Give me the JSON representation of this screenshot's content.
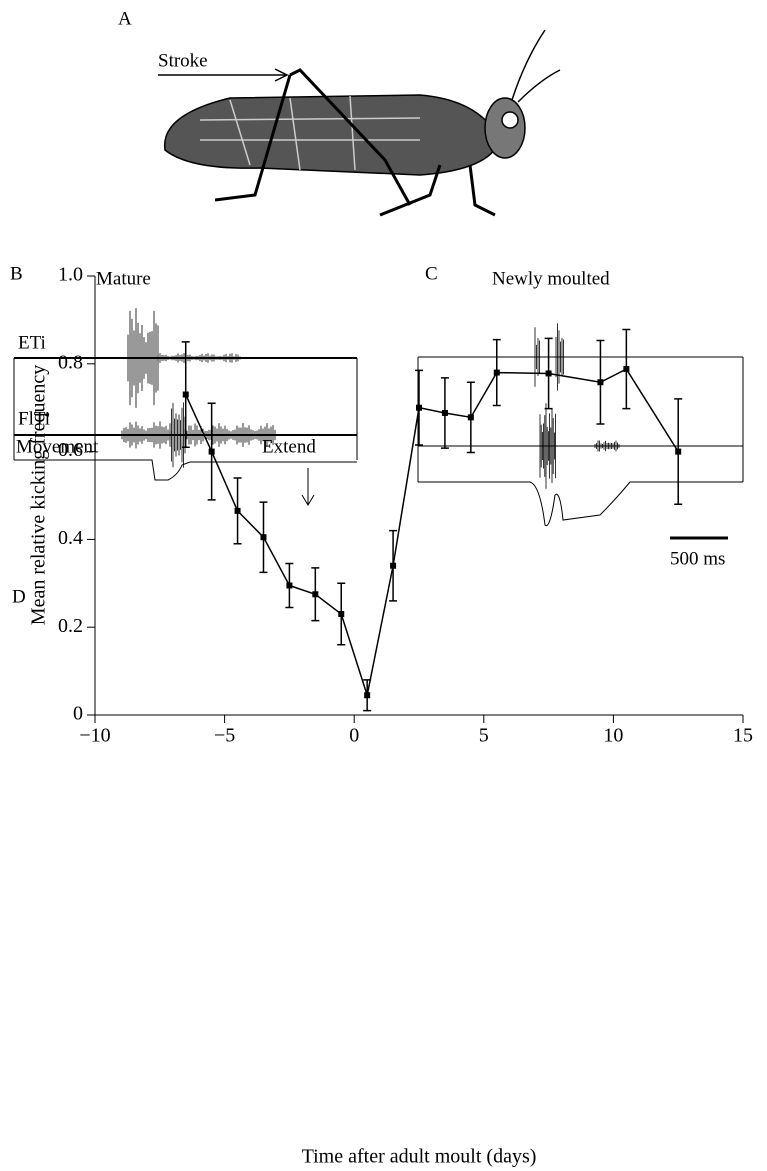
{
  "panel_a": {
    "label": "A",
    "stroke": "Stroke"
  },
  "panel_b": {
    "label": "B",
    "title": "Mature",
    "eti": "ETi",
    "flti": "FlTi",
    "movement": "Movement",
    "extend": "Extend"
  },
  "panel_c": {
    "label": "C",
    "title": "Newly moulted",
    "scale_bar": "500 ms"
  },
  "panel_d": {
    "label": "D"
  },
  "chart_data": {
    "type": "line",
    "x_label": "Time after adult moult (days)",
    "y_label": "Mean relative kicking frequency",
    "x": [
      -6.5,
      -5.5,
      -4.5,
      -3.5,
      -2.5,
      -1.5,
      -0.5,
      0.5,
      1.5,
      2.5,
      3.5,
      4.5,
      5.5,
      7.5,
      9.5,
      10.5,
      12.5
    ],
    "series": [
      {
        "color": "#000000",
        "values": [
          0.73,
          0.6,
          0.465,
          0.405,
          0.295,
          0.275,
          0.23,
          0.045,
          0.34,
          0.7,
          0.688,
          0.678,
          0.78,
          0.778,
          0.758,
          0.788,
          0.6
        ],
        "errors": [
          0.12,
          0.11,
          0.075,
          0.08,
          0.05,
          0.06,
          0.07,
          0.035,
          0.08,
          0.085,
          0.08,
          0.08,
          0.075,
          0.08,
          0.095,
          0.09,
          0.12
        ]
      }
    ],
    "xlim": [
      -10,
      15
    ],
    "xticks": [
      {
        "value": -10,
        "label": "−10"
      },
      {
        "value": -5,
        "label": "−5"
      },
      0,
      5,
      10,
      15
    ],
    "ylim": [
      0,
      1
    ],
    "yticks": [
      0,
      0.2,
      0.4,
      0.6,
      0.8,
      {
        "value": 1,
        "label": "1.0"
      }
    ],
    "grid": false
  }
}
